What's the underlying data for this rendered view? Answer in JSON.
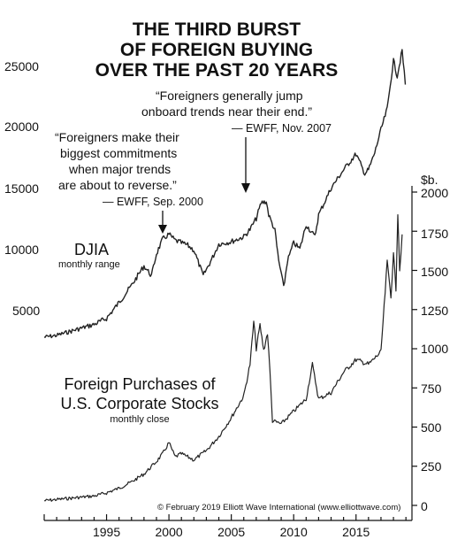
{
  "chart_data": {
    "type": "line",
    "title": [
      "THE THIRD BURST",
      "OF FOREIGN BUYING",
      "OVER THE PAST 20 YEARS"
    ],
    "x_ticks": [
      "1995",
      "2000",
      "2005",
      "2010",
      "2015"
    ],
    "x_range": [
      1990,
      2019.2
    ],
    "left_axis": {
      "ticks": [
        "25000",
        "20000",
        "15000",
        "10000",
        "5000"
      ],
      "values": [
        25000,
        20000,
        15000,
        10000,
        5000
      ]
    },
    "right_axis": {
      "unit": "$b.",
      "ticks": [
        "2000",
        "1750",
        "1500",
        "1250",
        "1000",
        "750",
        "500",
        "250",
        "0"
      ],
      "values": [
        2000,
        1750,
        1500,
        1250,
        1000,
        750,
        500,
        250,
        0
      ]
    },
    "series": [
      {
        "name": "DJIA",
        "sublabel": "monthly range",
        "axis": "left",
        "x": [
          1990,
          1991,
          1992,
          1993,
          1994,
          1995,
          1996,
          1997,
          1998,
          1998.6,
          1999,
          1999.5,
          2000,
          2000.5,
          2001,
          2001.5,
          2002,
          2002.75,
          2003,
          2003.5,
          2004,
          2005,
          2006,
          2006.5,
          2007,
          2007.4,
          2007.8,
          2008,
          2008.5,
          2008.8,
          2009,
          2009.2,
          2009.5,
          2010,
          2010.5,
          2011,
          2011.7,
          2012,
          2013,
          2014,
          2015,
          2015.7,
          2016,
          2016.5,
          2017,
          2017.5,
          2018,
          2018.3,
          2018.7,
          2018.95
        ],
        "values": [
          2750,
          2900,
          3200,
          3500,
          3800,
          4300,
          5600,
          7000,
          8600,
          7800,
          9600,
          10800,
          11200,
          10700,
          10500,
          10300,
          9900,
          7800,
          8300,
          9300,
          10400,
          10600,
          11000,
          11600,
          12500,
          13800,
          13900,
          12800,
          11500,
          9000,
          8000,
          6800,
          9000,
          10500,
          10000,
          12000,
          11000,
          12800,
          15000,
          16500,
          17800,
          16200,
          16500,
          17900,
          19800,
          21500,
          25500,
          24200,
          26300,
          23500
        ]
      },
      {
        "name": "Foreign Purchases of U.S. Corporate Stocks",
        "sublabel": "monthly close",
        "axis": "right",
        "x": [
          1990,
          1992,
          1994,
          1995,
          1996,
          1997,
          1998,
          1999,
          1999.5,
          2000,
          2000.5,
          2001,
          2002,
          2003,
          2004,
          2005,
          2006,
          2006.5,
          2006.8,
          2007,
          2007.3,
          2007.6,
          2007.9,
          2008.1,
          2008.3,
          2009,
          2010,
          2011,
          2011.5,
          2012,
          2013,
          2014,
          2015,
          2016,
          2017,
          2017.5,
          2017.8,
          2018,
          2018.2,
          2018.35,
          2018.5,
          2018.7
        ],
        "values": [
          30,
          45,
          60,
          80,
          110,
          150,
          200,
          280,
          330,
          400,
          310,
          330,
          290,
          350,
          440,
          560,
          700,
          900,
          1170,
          1000,
          1150,
          990,
          1100,
          850,
          540,
          520,
          600,
          680,
          900,
          680,
          720,
          850,
          930,
          900,
          980,
          1550,
          1340,
          1600,
          1380,
          1870,
          1500,
          1730
        ]
      }
    ],
    "annotations": [
      {
        "lines": [
          "“Foreigners make their",
          "biggest commitments",
          "when major trends",
          "are about to reverse.”"
        ],
        "attribution": "— EWFF, Sep. 2000",
        "x": 2000.1
      },
      {
        "lines": [
          "“Foreigners generally jump",
          "onboard trends near their end.”"
        ],
        "attribution": "— EWFF, Nov. 2007",
        "x": 2007.2
      }
    ],
    "copyright": "© February 2019 Elliott Wave International (www.elliottwave.com)"
  }
}
